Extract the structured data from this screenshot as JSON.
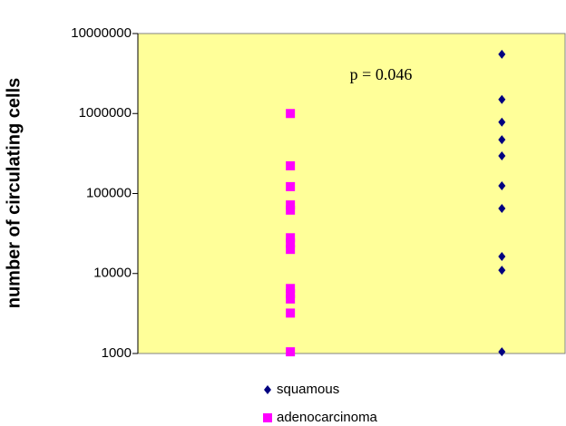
{
  "chart_data": {
    "type": "scatter",
    "y_label": "number of circulating cells",
    "annotation": "p = 0.046",
    "yscale": "log",
    "ylim": [
      1000,
      10000000
    ],
    "yticks": [
      1000,
      10000,
      100000,
      1000000,
      10000000
    ],
    "background": "#ffff99",
    "legend": "bottom",
    "series": [
      {
        "name": "squamous",
        "color": "#000080",
        "marker": "diamond",
        "values": [
          5500000,
          1500000,
          780000,
          470000,
          295000,
          125000,
          65000,
          16300,
          11000,
          1050
        ]
      },
      {
        "name": "adenocarcinoma",
        "color": "#ff00ff",
        "marker": "square",
        "values": [
          1000000,
          222000,
          122000,
          72000,
          62000,
          28000,
          24000,
          20000,
          6500,
          5600,
          4800,
          3200,
          1050
        ]
      }
    ]
  }
}
